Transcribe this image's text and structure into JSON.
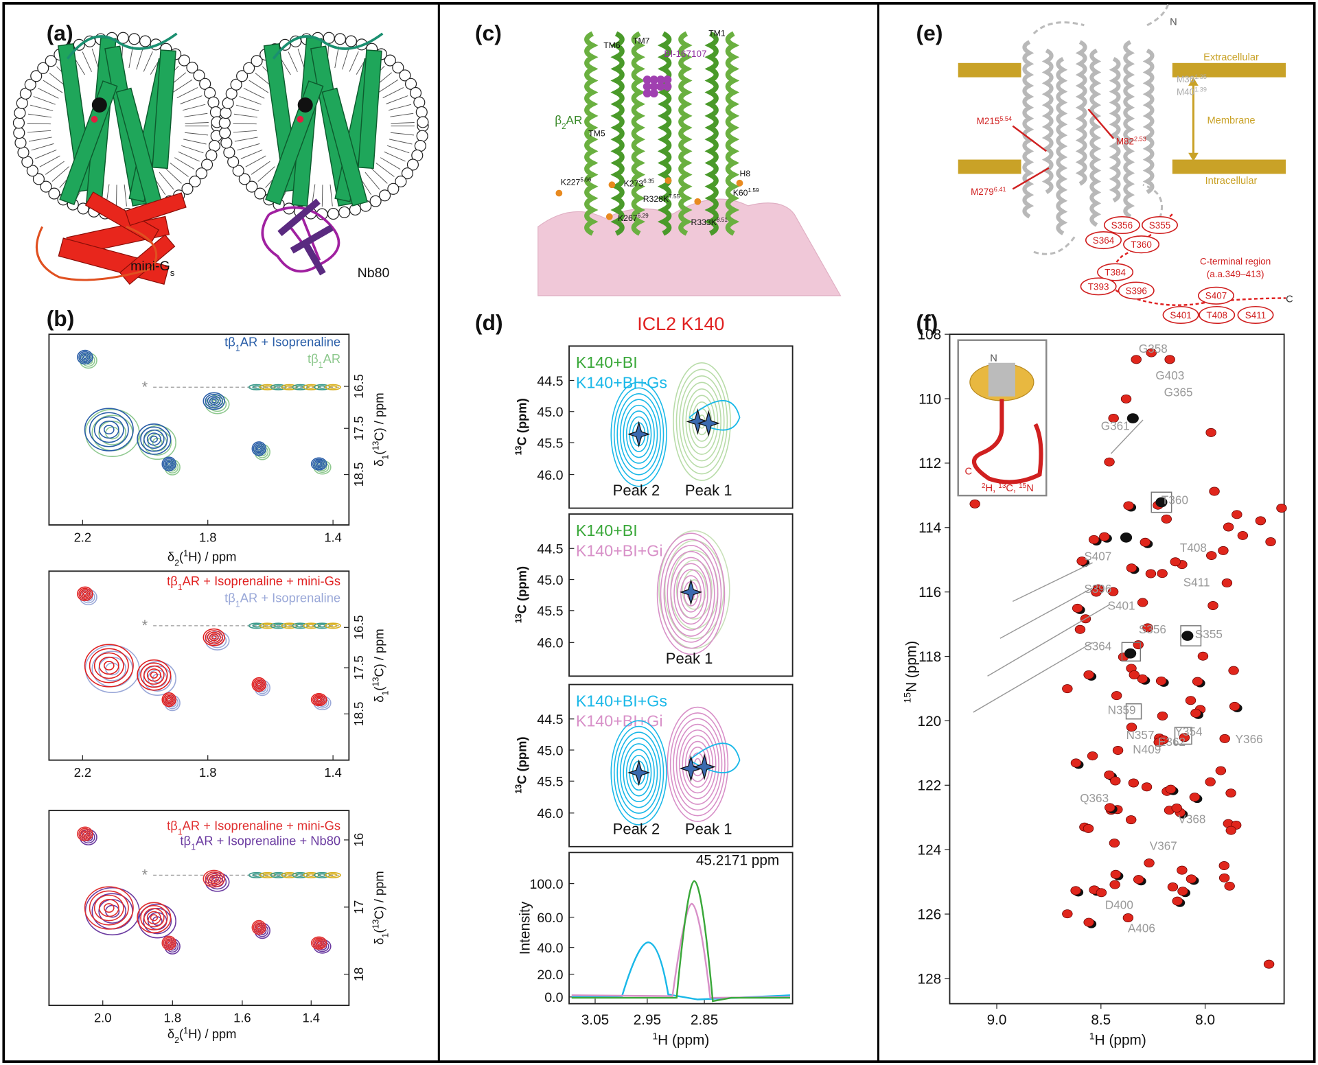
{
  "panel_a": {
    "label": "(a)",
    "mini_gs": [
      "mini-G",
      "s"
    ],
    "nb80": "Nb80"
  },
  "panel_b": {
    "label": "(b)",
    "marker": "*",
    "plots": [
      {
        "legend": [
          [
            "tβ",
            "1",
            "AR + Isoprenaline"
          ],
          [
            "tβ",
            "1",
            "AR"
          ]
        ],
        "x_ticks": [
          "2.2",
          "1.8",
          "1.4"
        ],
        "y_ticks": [
          "16.5",
          "17.5",
          "18.5"
        ],
        "x_label": [
          "δ",
          "2",
          "(",
          "1",
          "H) / ppm"
        ],
        "y_label": [
          "δ",
          "1",
          "(",
          "13",
          "C) / ppm"
        ]
      },
      {
        "legend": [
          [
            "tβ",
            "1",
            "AR + Isoprenaline + mini-G",
            "s"
          ],
          [
            "tβ",
            "1",
            "AR + Isoprenaline"
          ]
        ],
        "x_ticks": [
          "2.2",
          "1.8",
          "1.4"
        ],
        "y_ticks": [
          "16.5",
          "17.5",
          "18.5"
        ],
        "y_label": [
          "δ",
          "1",
          "(",
          "13",
          "C) / ppm"
        ]
      },
      {
        "legend": [
          [
            "tβ",
            "1",
            "AR + Isoprenaline + mini-G",
            "s"
          ],
          [
            "tβ",
            "1",
            "AR + Isoprenaline + Nb80"
          ]
        ],
        "x_ticks": [
          "2.0",
          "1.8",
          "1.6",
          "1.4"
        ],
        "y_ticks": [
          "16",
          "17",
          "18"
        ],
        "x_label": [
          "δ",
          "2",
          "(",
          "1",
          "H) / ppm"
        ],
        "y_label": [
          "δ",
          "1",
          "(",
          "13",
          "C) / ppm"
        ]
      }
    ]
  },
  "panel_c": {
    "label": "(c)",
    "helices": [
      "TM6",
      "TM7",
      "TM1",
      "TM5",
      "H8"
    ],
    "ligand": "BI-167107",
    "receptor": [
      "β",
      "2",
      "AR"
    ],
    "residues": [
      [
        "K227",
        "5.66"
      ],
      [
        "K273",
        "6.35"
      ],
      [
        "R328K",
        "7.55"
      ],
      [
        "K267",
        "6.29"
      ],
      [
        "R333K",
        "8.51"
      ],
      [
        "K60",
        "1.59"
      ]
    ]
  },
  "panel_d": {
    "label": "(d)",
    "title": "ICL2 K140",
    "boxes": [
      {
        "legend": [
          "K140+BI",
          "K140+BI+Gs"
        ],
        "peaks": [
          "Peak 2",
          "Peak 1"
        ]
      },
      {
        "legend": [
          "K140+BI",
          "K140+BI+Gi"
        ],
        "peaks": [
          "Peak 1"
        ]
      },
      {
        "legend": [
          "K140+BI+Gs",
          "K140+BI+Gi"
        ],
        "peaks": [
          "Peak 2",
          "Peak 1"
        ]
      }
    ],
    "y_ticks": [
      "44.5",
      "45.0",
      "45.5",
      "46.0"
    ],
    "y_label": [
      "13",
      "C (ppm)"
    ],
    "trace": {
      "annotation": "45.2171 ppm",
      "y_label": "Intensity",
      "y_ticks": [
        "100.0",
        "60.0",
        "40.0",
        "20.0",
        "0.0"
      ],
      "x_ticks": [
        "3.05",
        "2.95",
        "2.85"
      ],
      "x_label": [
        "1",
        "H (ppm)"
      ]
    }
  },
  "panel_e": {
    "label": "(e)",
    "n_term": "N",
    "c_term": "C",
    "regions": [
      "Extracellular",
      "Membrane",
      "Intracellular"
    ],
    "gray_residues": [
      [
        "M36",
        "1.35"
      ],
      [
        "M40",
        "1.39"
      ]
    ],
    "red_residues": [
      [
        "M215",
        "5.54"
      ],
      [
        "M82",
        "2.53"
      ],
      [
        "M279",
        "6.41"
      ]
    ],
    "c_terminal_sites": [
      "S356",
      "S355",
      "S364",
      "T360",
      "T384",
      "S396",
      "T393",
      "S407",
      "S401",
      "T408",
      "S411"
    ],
    "c_terminal_label": "C-terminal region",
    "c_terminal_range": "(a.a.349–413)"
  },
  "panel_f": {
    "label": "(f)",
    "y_ticks": [
      "108",
      "110",
      "112",
      "114",
      "116",
      "118",
      "120",
      "122",
      "124",
      "126",
      "128"
    ],
    "x_ticks": [
      "9.0",
      "8.5",
      "8.0"
    ],
    "y_label": [
      "15",
      "N (ppm)"
    ],
    "x_label": [
      "1",
      "H (ppm)"
    ],
    "inset": {
      "n_term": "N",
      "c_term": "C",
      "labeling": [
        "2",
        "H, ",
        "13",
        "C, ",
        "15",
        "N"
      ]
    },
    "peak_labels": [
      "G358",
      "G403",
      "G365",
      "G361",
      "T360",
      "T408",
      "S407",
      "S411",
      "S396",
      "S401",
      "S356",
      "S355",
      "S364",
      "N359",
      "Y354",
      "Y366",
      "N357",
      "E362",
      "N409",
      "Q363",
      "V368",
      "V367",
      "D400",
      "A406"
    ]
  }
}
